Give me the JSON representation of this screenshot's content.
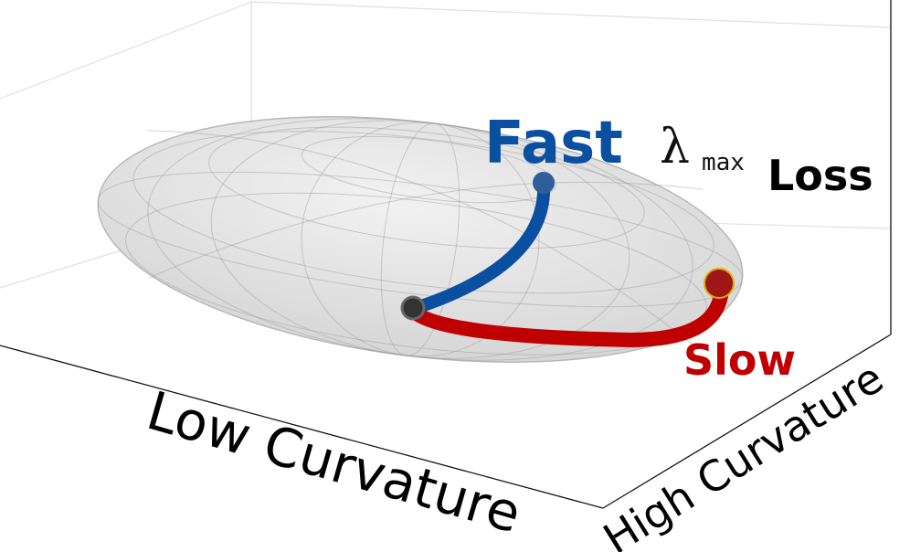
{
  "labels": {
    "fast": "Fast",
    "lambda": "λ",
    "lambda_sub": "max",
    "loss": "Loss",
    "slow": "Slow",
    "x_axis": "Low Curvature",
    "y_axis": "High Curvature"
  }
}
